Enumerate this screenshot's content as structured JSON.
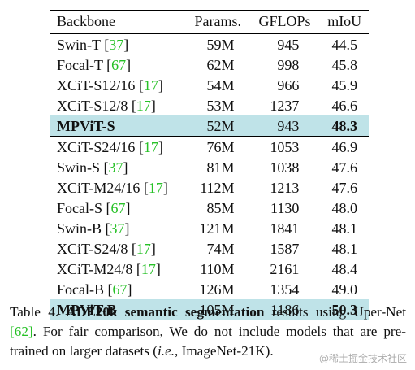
{
  "table": {
    "headers": [
      "Backbone",
      "Params.",
      "GFLOPs",
      "mIoU"
    ],
    "rows": [
      {
        "name": "Swin-T",
        "ref": "37",
        "params": "59M",
        "gflops": "945",
        "miou": "44.5"
      },
      {
        "name": "Focal-T",
        "ref": "67",
        "params": "62M",
        "gflops": "998",
        "miou": "45.8"
      },
      {
        "name": "XCiT-S12/16",
        "ref": "17",
        "params": "54M",
        "gflops": "966",
        "miou": "45.9"
      },
      {
        "name": "XCiT-S12/8",
        "ref": "17",
        "params": "53M",
        "gflops": "1237",
        "miou": "46.6"
      },
      {
        "name": "MPViT-S",
        "ref": "",
        "params": "52M",
        "gflops": "943",
        "miou": "48.3",
        "highlight": true
      },
      {
        "name": "XCiT-S24/16",
        "ref": "17",
        "params": "76M",
        "gflops": "1053",
        "miou": "46.9"
      },
      {
        "name": "Swin-S",
        "ref": "37",
        "params": "81M",
        "gflops": "1038",
        "miou": "47.6"
      },
      {
        "name": "XCiT-M24/16",
        "ref": "17",
        "params": "112M",
        "gflops": "1213",
        "miou": "47.6"
      },
      {
        "name": "Focal-S",
        "ref": "67",
        "params": "85M",
        "gflops": "1130",
        "miou": "48.0"
      },
      {
        "name": "Swin-B",
        "ref": "37",
        "params": "121M",
        "gflops": "1841",
        "miou": "48.1"
      },
      {
        "name": "XCiT-S24/8",
        "ref": "17",
        "params": "74M",
        "gflops": "1587",
        "miou": "48.1"
      },
      {
        "name": "XCiT-M24/8",
        "ref": "17",
        "params": "110M",
        "gflops": "2161",
        "miou": "48.4"
      },
      {
        "name": "Focal-B",
        "ref": "67",
        "params": "126M",
        "gflops": "1354",
        "miou": "49.0"
      },
      {
        "name": "MPViT-B",
        "ref": "",
        "params": "105M",
        "gflops": "1186",
        "miou": "50.3",
        "highlight": true
      }
    ]
  },
  "caption": {
    "label": "Table 4.",
    "bold": "ADE20k semantic segmentation",
    "text1": " results using Uper-Net ",
    "ref1": "[62]",
    "text2": ". For fair comparison, We do not include models that are pre-trained on larger datasets (",
    "italic": "i.e.,",
    "text3": " ImageNet-21K)."
  },
  "watermark": "@稀土掘金技术社区",
  "colors": {
    "highlight": "#bfe3e8",
    "ref": "#27c127"
  }
}
